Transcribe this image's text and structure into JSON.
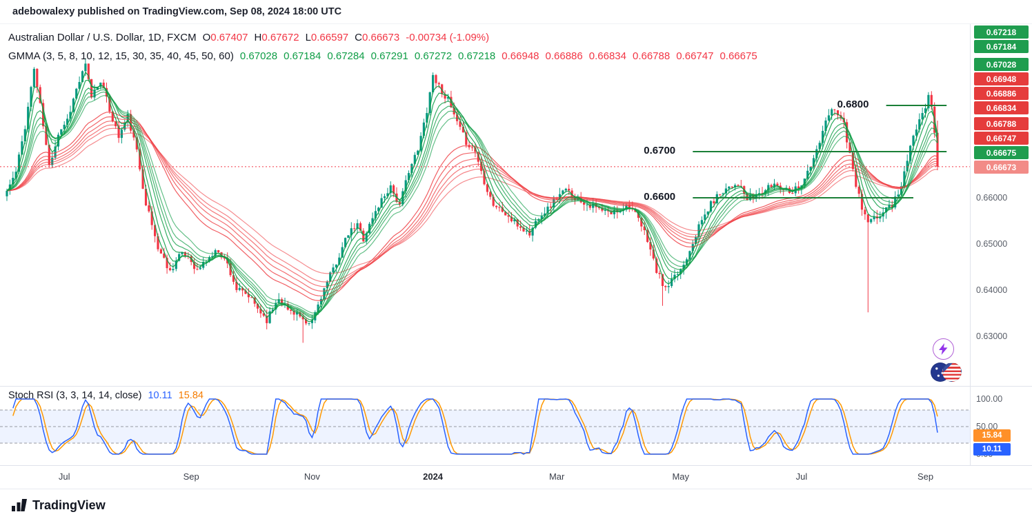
{
  "header": {
    "published": "adebowalexy published on TradingView.com, Sep 08, 2024 18:00 UTC"
  },
  "symbol": {
    "title": "Australian Dollar / U.S. Dollar, 1D, FXCM",
    "ohlc": [
      {
        "k": "O",
        "v": "0.67407"
      },
      {
        "k": "H",
        "v": "0.67672"
      },
      {
        "k": "L",
        "v": "0.66597"
      },
      {
        "k": "C",
        "v": "0.66673"
      }
    ],
    "change": "-0.00734 (-1.09%)"
  },
  "gmma": {
    "label": "GMMA (3, 5, 8, 10, 12, 15, 30, 35, 40, 45, 50, 60)",
    "green_values": [
      "0.67028",
      "0.67184",
      "0.67284",
      "0.67291",
      "0.67272",
      "0.67218"
    ],
    "red_values": [
      "0.66948",
      "0.66886",
      "0.66834",
      "0.66788",
      "0.66747",
      "0.66675"
    ]
  },
  "price_axis": {
    "badges": [
      {
        "text": "0.67218",
        "color": "green"
      },
      {
        "text": "0.67184",
        "color": "green"
      },
      {
        "text": "0.67028",
        "color": "green"
      },
      {
        "text": "0.66948",
        "color": "red"
      },
      {
        "text": "0.66886",
        "color": "red"
      },
      {
        "text": "0.66834",
        "color": "red"
      },
      {
        "text": "0.66788",
        "color": "red"
      },
      {
        "text": "0.66747",
        "color": "red"
      },
      {
        "text": "0.66675",
        "color": "green"
      },
      {
        "text": "0.66673",
        "color": "last"
      }
    ],
    "ticks": [
      {
        "text": "0.66000",
        "price": 0.66
      },
      {
        "text": "0.65000",
        "price": 0.65
      },
      {
        "text": "0.64000",
        "price": 0.64
      },
      {
        "text": "0.63000",
        "price": 0.63
      }
    ]
  },
  "stoch": {
    "label": "Stoch RSI (3, 3, 14, 14, close)",
    "k_value": "10.11",
    "d_value": "15.84",
    "ticks": [
      {
        "text": "100.00",
        "value": 100
      },
      {
        "text": "50.00",
        "value": 50
      },
      {
        "text": "0.00",
        "value": 0
      }
    ],
    "badges": [
      {
        "text": "15.84",
        "color": "orange"
      },
      {
        "text": "10.11",
        "color": "blue"
      }
    ]
  },
  "time_axis": [
    {
      "label": "Jul",
      "day": 19
    },
    {
      "label": "Sep",
      "day": 61
    },
    {
      "label": "Nov",
      "day": 101
    },
    {
      "label": "2024",
      "day": 141,
      "major": true
    },
    {
      "label": "Mar",
      "day": 182
    },
    {
      "label": "May",
      "day": 223
    },
    {
      "label": "Jul",
      "day": 263
    },
    {
      "label": "Sep",
      "day": 304
    }
  ],
  "footer": {
    "brand": "TradingView"
  },
  "colors": {
    "up": "#089981",
    "down": "#f23645",
    "gmma_short": "#0f9d46",
    "gmma_long": "#ef4146",
    "level": "#1a7f37",
    "current_price_line": "#f23645",
    "k_line": "#2962ff",
    "d_line": "#ff9800",
    "badge_green": "#1f9d4f",
    "badge_red": "#e53c3c",
    "badge_last": "#f28b87",
    "badge_orange": "#ff9028",
    "badge_blue": "#2962ff",
    "band_fill": "rgba(41,98,255,0.08)",
    "dash_line": "#9598a1"
  },
  "chart_data": {
    "type": "candlestick",
    "symbol": "AUD/USD",
    "timeframe": "1D",
    "exchange": "FXCM",
    "num_days": 309,
    "y_ticks": [
      0.66,
      0.65,
      0.64,
      0.63
    ],
    "last_candle": {
      "open": 0.67407,
      "high": 0.67672,
      "low": 0.66597,
      "close": 0.66673
    },
    "current_price": 0.66673,
    "close_anchors": [
      [
        0,
        0.6615
      ],
      [
        3,
        0.6655
      ],
      [
        6,
        0.6755
      ],
      [
        9,
        0.688
      ],
      [
        11,
        0.68
      ],
      [
        14,
        0.6668
      ],
      [
        17,
        0.674
      ],
      [
        20,
        0.677
      ],
      [
        23,
        0.6835
      ],
      [
        26,
        0.6886
      ],
      [
        28,
        0.682
      ],
      [
        31,
        0.6856
      ],
      [
        34,
        0.679
      ],
      [
        37,
        0.6732
      ],
      [
        40,
        0.6776
      ],
      [
        43,
        0.67
      ],
      [
        46,
        0.659
      ],
      [
        50,
        0.6492
      ],
      [
        54,
        0.6441
      ],
      [
        57,
        0.6476
      ],
      [
        60,
        0.6474
      ],
      [
        63,
        0.6442
      ],
      [
        66,
        0.6465
      ],
      [
        70,
        0.6487
      ],
      [
        73,
        0.6456
      ],
      [
        76,
        0.6402
      ],
      [
        80,
        0.6386
      ],
      [
        83,
        0.6361
      ],
      [
        86,
        0.6336
      ],
      [
        90,
        0.6386
      ],
      [
        93,
        0.6357
      ],
      [
        96,
        0.6351
      ],
      [
        99,
        0.6321
      ],
      [
        101,
        0.6333
      ],
      [
        104,
        0.6387
      ],
      [
        107,
        0.6431
      ],
      [
        110,
        0.6476
      ],
      [
        113,
        0.6521
      ],
      [
        116,
        0.6541
      ],
      [
        118,
        0.6512
      ],
      [
        121,
        0.6556
      ],
      [
        124,
        0.6596
      ],
      [
        127,
        0.6626
      ],
      [
        130,
        0.6581
      ],
      [
        133,
        0.6661
      ],
      [
        136,
        0.6701
      ],
      [
        139,
        0.6791
      ],
      [
        141,
        0.6866
      ],
      [
        143,
        0.6841
      ],
      [
        146,
        0.6811
      ],
      [
        149,
        0.6761
      ],
      [
        152,
        0.6721
      ],
      [
        155,
        0.6701
      ],
      [
        158,
        0.6636
      ],
      [
        161,
        0.6586
      ],
      [
        164,
        0.6571
      ],
      [
        167,
        0.6551
      ],
      [
        170,
        0.6536
      ],
      [
        173,
        0.6521
      ],
      [
        176,
        0.6561
      ],
      [
        179,
        0.6576
      ],
      [
        182,
        0.6601
      ],
      [
        185,
        0.6616
      ],
      [
        188,
        0.6601
      ],
      [
        191,
        0.6591
      ],
      [
        194,
        0.6581
      ],
      [
        197,
        0.6571
      ],
      [
        200,
        0.6566
      ],
      [
        203,
        0.6576
      ],
      [
        206,
        0.6586
      ],
      [
        209,
        0.6551
      ],
      [
        212,
        0.6511
      ],
      [
        215,
        0.6441
      ],
      [
        218,
        0.6401
      ],
      [
        221,
        0.6426
      ],
      [
        224,
        0.6456
      ],
      [
        227,
        0.6506
      ],
      [
        230,
        0.6551
      ],
      [
        233,
        0.6586
      ],
      [
        236,
        0.6611
      ],
      [
        239,
        0.6626
      ],
      [
        242,
        0.6631
      ],
      [
        245,
        0.6596
      ],
      [
        248,
        0.6606
      ],
      [
        251,
        0.6616
      ],
      [
        254,
        0.6631
      ],
      [
        257,
        0.6621
      ],
      [
        260,
        0.6616
      ],
      [
        263,
        0.6631
      ],
      [
        266,
        0.6666
      ],
      [
        269,
        0.6721
      ],
      [
        272,
        0.6781
      ],
      [
        274,
        0.6796
      ],
      [
        277,
        0.6761
      ],
      [
        280,
        0.6656
      ],
      [
        283,
        0.6576
      ],
      [
        285,
        0.6546
      ],
      [
        288,
        0.6556
      ],
      [
        290,
        0.6571
      ],
      [
        293,
        0.6586
      ],
      [
        296,
        0.6626
      ],
      [
        298,
        0.6681
      ],
      [
        300,
        0.6731
      ],
      [
        302,
        0.6776
      ],
      [
        304,
        0.6801
      ],
      [
        305,
        0.6816
      ],
      [
        306,
        0.6801
      ],
      [
        307,
        0.67407
      ],
      [
        308,
        0.66673
      ]
    ],
    "wick_events": [
      {
        "day": 98,
        "low": 0.6286
      },
      {
        "day": 217,
        "low": 0.6366
      },
      {
        "day": 285,
        "low": 0.6352
      }
    ],
    "gmma_periods": {
      "short": [
        3,
        5,
        8,
        10,
        12,
        15
      ],
      "long": [
        30,
        35,
        40,
        45,
        50,
        60
      ]
    },
    "levels": [
      {
        "label": "0.6800",
        "price": 0.68,
        "day_start": 291,
        "day_end": 311
      },
      {
        "label": "0.6700",
        "price": 0.67,
        "day_start": 227,
        "day_end": 311
      },
      {
        "label": "0.6600",
        "price": 0.66,
        "day_start": 227,
        "day_end": 300
      }
    ],
    "stoch_rsi": {
      "params": [
        3,
        3,
        14,
        14
      ],
      "source": "close",
      "k_last": 10.11,
      "d_last": 15.84,
      "bands": [
        20,
        80
      ],
      "middle": 50,
      "range": [
        0,
        100
      ]
    }
  }
}
